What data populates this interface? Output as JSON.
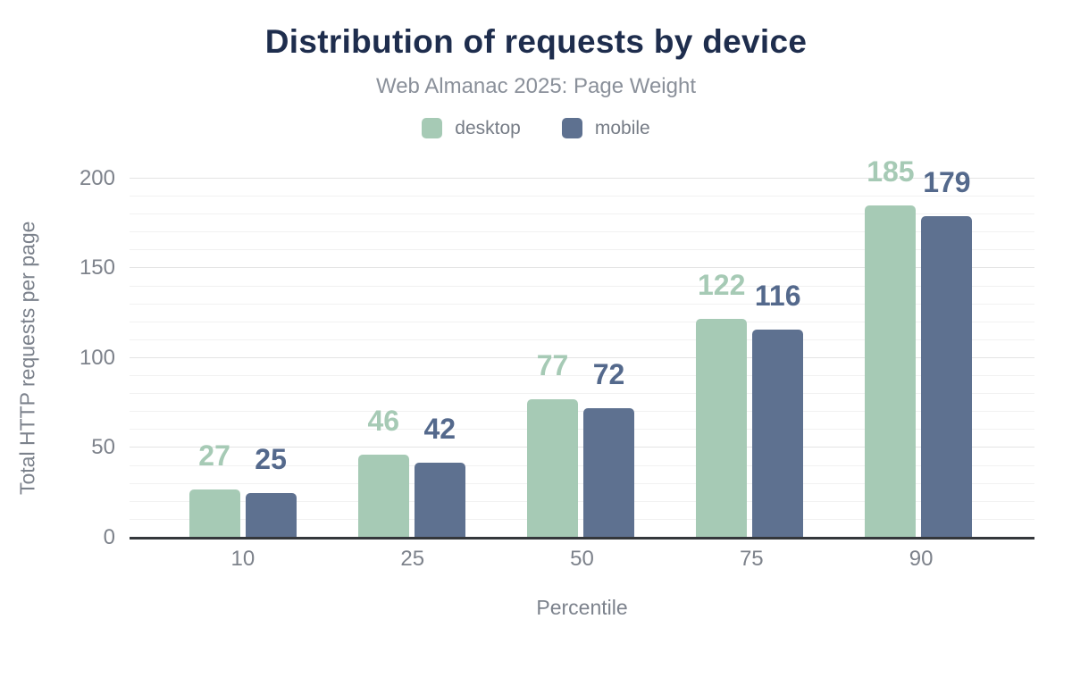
{
  "chart_data": {
    "type": "bar",
    "title": "Distribution of requests by device",
    "subtitle": "Web Almanac 2025: Page Weight",
    "categories": [
      "10",
      "25",
      "50",
      "75",
      "90"
    ],
    "series": [
      {
        "name": "desktop",
        "color": "#a6cab5",
        "label_color": "#a6cab5",
        "values": [
          27,
          46,
          77,
          122,
          185
        ]
      },
      {
        "name": "mobile",
        "color": "#5e7190",
        "label_color": "#54698c",
        "values": [
          25,
          42,
          72,
          116,
          179
        ]
      }
    ],
    "xlabel": "Percentile",
    "ylabel": "Total HTTP requests per page",
    "ylim": [
      0,
      200
    ],
    "yticks": [
      0,
      50,
      100,
      150,
      200
    ],
    "grid": {
      "minor_step": 10,
      "major_step": 50,
      "visible": true
    },
    "legend_position": "top",
    "value_labels": true,
    "baseline_color": "#34373b"
  }
}
